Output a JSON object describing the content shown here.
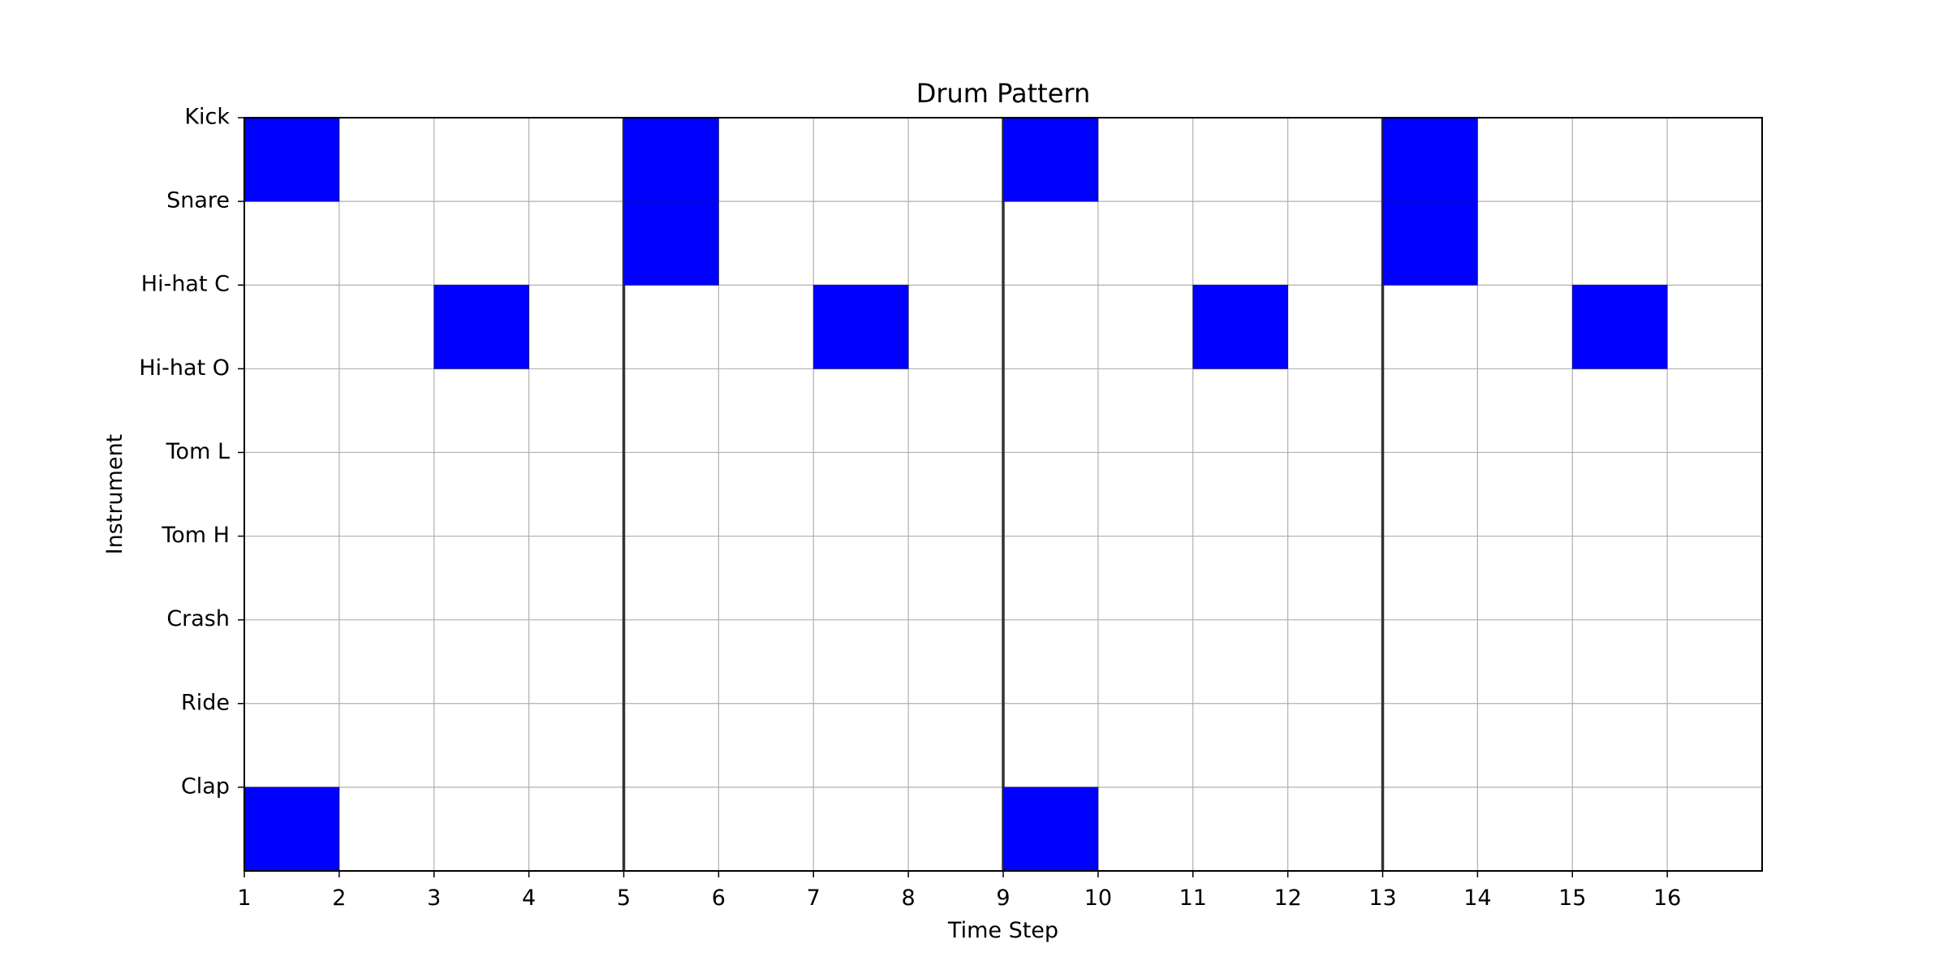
{
  "chart_data": {
    "type": "heatmap",
    "title": "Drum Pattern",
    "xlabel": "Time Step",
    "ylabel": "Instrument",
    "instruments": [
      "Kick",
      "Snare",
      "Hi-hat C",
      "Hi-hat O",
      "Tom L",
      "Tom H",
      "Crash",
      "Ride",
      "Clap"
    ],
    "x_ticks": [
      1,
      2,
      3,
      4,
      5,
      6,
      7,
      8,
      9,
      10,
      11,
      12,
      13,
      14,
      15,
      16
    ],
    "xlim": [
      1,
      17
    ],
    "ylim": [
      0,
      9
    ],
    "grid": true,
    "bar_lines": [
      5,
      9,
      13
    ],
    "hits": [
      {
        "instrument": "Kick",
        "steps": [
          1,
          5,
          9,
          13
        ]
      },
      {
        "instrument": "Snare",
        "steps": [
          5,
          13
        ]
      },
      {
        "instrument": "Hi-hat C",
        "steps": [
          3,
          7,
          11,
          15
        ]
      },
      {
        "instrument": "Hi-hat O",
        "steps": []
      },
      {
        "instrument": "Tom L",
        "steps": []
      },
      {
        "instrument": "Tom H",
        "steps": []
      },
      {
        "instrument": "Crash",
        "steps": []
      },
      {
        "instrument": "Ride",
        "steps": []
      },
      {
        "instrument": "Clap",
        "steps": [
          1,
          9
        ]
      }
    ],
    "colors": {
      "hit": "#0000ff",
      "grid": "#b0b0b0",
      "bar_line": "#333333",
      "frame": "#000000"
    }
  }
}
